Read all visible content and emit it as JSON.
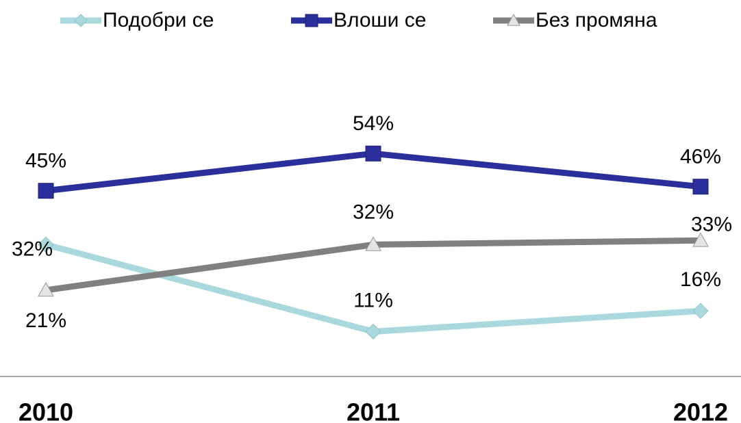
{
  "chart_data": {
    "type": "line",
    "categories": [
      "2010",
      "2011",
      "2012"
    ],
    "series": [
      {
        "name": "Подобри се",
        "color": "#a9d9dd",
        "marker": "diamond",
        "values": [
          32,
          11,
          16
        ],
        "value_labels": [
          "32%",
          "11%",
          "16%"
        ]
      },
      {
        "name": "Влоши се",
        "color": "#2b2f9c",
        "marker": "square",
        "values": [
          45,
          54,
          46
        ],
        "value_labels": [
          "45%",
          "54%",
          "46%"
        ]
      },
      {
        "name": "Без промяна",
        "color": "#808080",
        "marker": "triangle",
        "values": [
          21,
          32,
          33
        ],
        "value_labels": [
          "21%",
          "32%",
          "33%"
        ]
      }
    ],
    "ylim": [
      0,
      70
    ],
    "legend": "top"
  }
}
